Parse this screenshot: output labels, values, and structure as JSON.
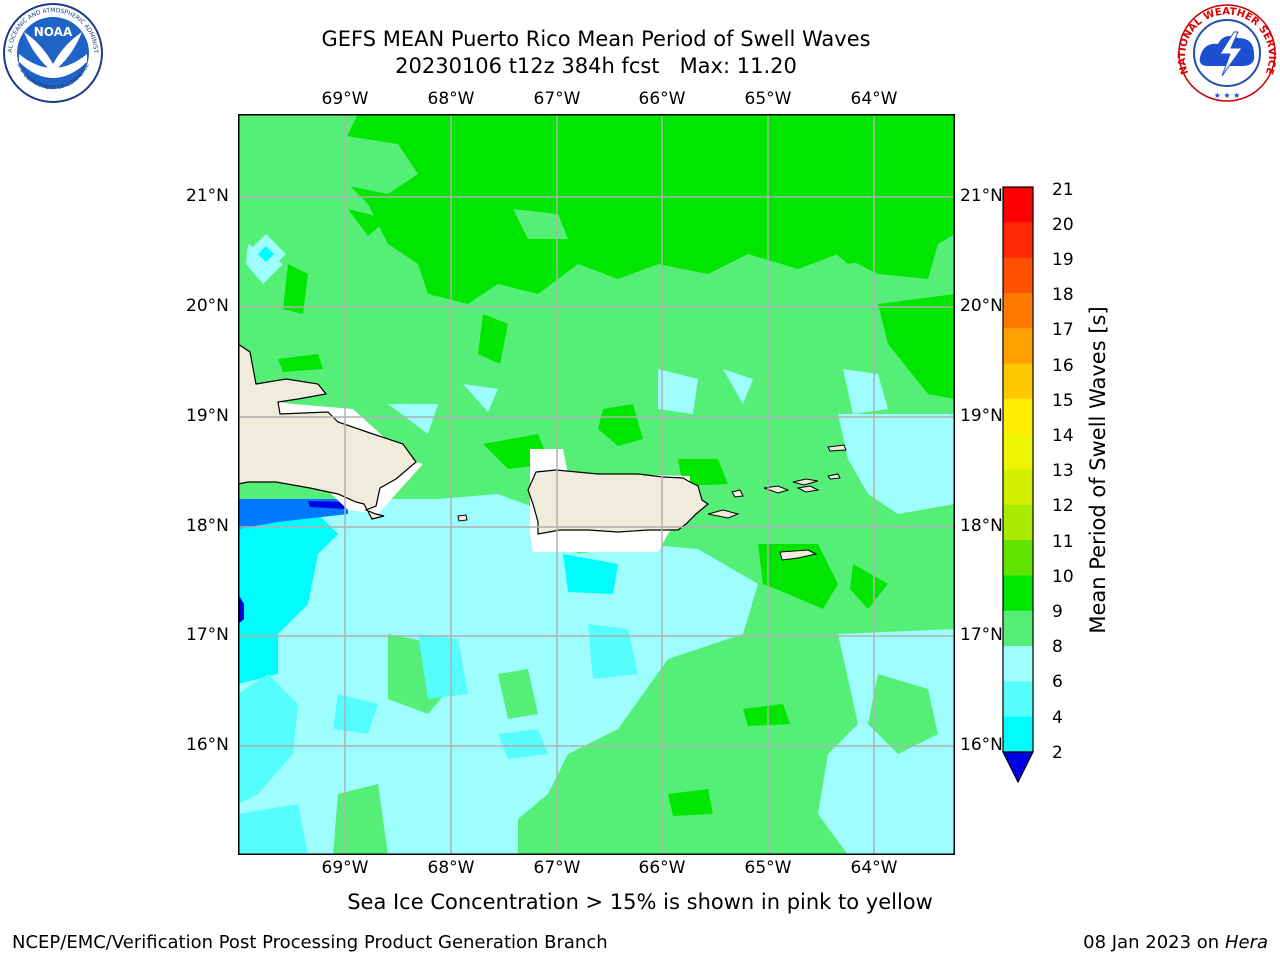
{
  "title": {
    "line1": "GEFS MEAN Puerto Rico Mean Period of Swell Waves",
    "line2": "20230106 t12z 384h fcst   Max: 11.20"
  },
  "logos": {
    "noaa_text": "NOAA",
    "noaa_ring_top": "NATIONAL OCEANIC AND ATMOSPHERIC ADMINISTRATION",
    "noaa_ring_bottom": "U.S. DEPARTMENT OF COMMERCE",
    "nws_ring": "NATIONAL WEATHER SERVICE"
  },
  "map": {
    "lon_labels": [
      "69°W",
      "68°W",
      "67°W",
      "66°W",
      "65°W",
      "64°W"
    ],
    "lat_labels": [
      "21°N",
      "20°N",
      "19°N",
      "18°N",
      "17°N",
      "16°N"
    ],
    "colors": {
      "green_dark": "#00e600",
      "green_light": "#55ef78",
      "cyan_light": "#9dfefd",
      "cyan": "#00fdfd",
      "blue": "#0078ff",
      "dark_blue": "#0000e6",
      "land": "#efecdc"
    }
  },
  "colorbar": {
    "label": "Mean Period of Swell Waves [s]",
    "ticks": [
      "21",
      "20",
      "19",
      "18",
      "17",
      "16",
      "15",
      "14",
      "13",
      "12",
      "11",
      "10",
      "9",
      "8",
      "6",
      "4",
      "2"
    ],
    "colors": [
      "#ff0000",
      "#ff2800",
      "#ff5000",
      "#ff7800",
      "#ffa000",
      "#ffc800",
      "#ffee00",
      "#eef500",
      "#d2ef00",
      "#a8eb00",
      "#62e400",
      "#00e600",
      "#55ef78",
      "#9dfefd",
      "#55fefd",
      "#00fdfd",
      "#0078ff"
    ],
    "extend_color": "#0000e6"
  },
  "subtitle": "Sea Ice Concentration > 15% is shown in pink to yellow",
  "footer": {
    "left": "NCEP/EMC/Verification Post Processing Product Generation Branch",
    "right_date": "08 Jan 2023 on ",
    "right_host": "Hera"
  }
}
